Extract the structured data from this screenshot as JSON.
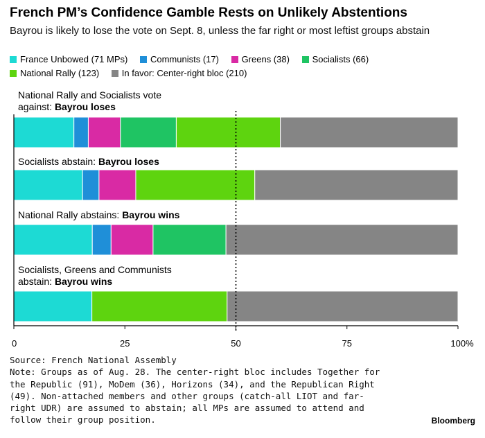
{
  "title": "French PM’s Confidence Gamble Rests on Unlikely Abstentions",
  "subtitle": "Bayrou is likely to lose the vote on Sept. 8, unless the far right or most leftist groups abstain",
  "colors": {
    "france_unbowed": "#1ddad4",
    "communists": "#1f8fd8",
    "greens": "#d92aa4",
    "socialists": "#1fc463",
    "national_rally": "#5ed40f",
    "center_right": "#858585"
  },
  "legend": [
    {
      "label": "France Unbowed (71 MPs)",
      "color": "#1ddad4"
    },
    {
      "label": "Communists (17)",
      "color": "#1f8fd8"
    },
    {
      "label": "Greens (38)",
      "color": "#d92aa4"
    },
    {
      "label": "Socialists (66)",
      "color": "#1fc463"
    },
    {
      "label": "National Rally (123)",
      "color": "#5ed40f"
    },
    {
      "label": "In favor: Center-right bloc (210)",
      "color": "#858585"
    }
  ],
  "chart_data": {
    "type": "bar",
    "orientation": "horizontal",
    "stacked": "percent",
    "xlim": [
      0,
      100
    ],
    "x_ticks": [
      "0",
      "25",
      "50",
      "75",
      "100%"
    ],
    "reference_line": 50,
    "panels": [
      {
        "label_plain": "National Rally and Socialists vote against: ",
        "label_bold": "Bayrou loses",
        "segments": [
          {
            "series": "France Unbowed (71 MPs)",
            "value": 71,
            "color": "#1ddad4"
          },
          {
            "series": "Communists (17)",
            "value": 17,
            "color": "#1f8fd8"
          },
          {
            "series": "Greens (38)",
            "value": 38,
            "color": "#d92aa4"
          },
          {
            "series": "Socialists (66)",
            "value": 66,
            "color": "#1fc463"
          },
          {
            "series": "National Rally (123)",
            "value": 123,
            "color": "#5ed40f"
          },
          {
            "series": "In favor: Center-right bloc (210)",
            "value": 210,
            "color": "#858585"
          }
        ]
      },
      {
        "label_plain": "Socialists abstain: ",
        "label_bold": "Bayrou loses",
        "segments": [
          {
            "series": "France Unbowed (71 MPs)",
            "value": 71,
            "color": "#1ddad4"
          },
          {
            "series": "Communists (17)",
            "value": 17,
            "color": "#1f8fd8"
          },
          {
            "series": "Greens (38)",
            "value": 38,
            "color": "#d92aa4"
          },
          {
            "series": "National Rally (123)",
            "value": 123,
            "color": "#5ed40f"
          },
          {
            "series": "In favor: Center-right bloc (210)",
            "value": 210,
            "color": "#858585"
          }
        ]
      },
      {
        "label_plain": "National Rally abstains: ",
        "label_bold": "Bayrou wins",
        "segments": [
          {
            "series": "France Unbowed (71 MPs)",
            "value": 71,
            "color": "#1ddad4"
          },
          {
            "series": "Communists (17)",
            "value": 17,
            "color": "#1f8fd8"
          },
          {
            "series": "Greens (38)",
            "value": 38,
            "color": "#d92aa4"
          },
          {
            "series": "Socialists (66)",
            "value": 66,
            "color": "#1fc463"
          },
          {
            "series": "In favor: Center-right bloc (210)",
            "value": 210,
            "color": "#858585"
          }
        ]
      },
      {
        "label_plain": "Socialists, Greens and Communists abstain: ",
        "label_bold": "Bayrou wins",
        "segments": [
          {
            "series": "France Unbowed (71 MPs)",
            "value": 71,
            "color": "#1ddad4"
          },
          {
            "series": "National Rally (123)",
            "value": 123,
            "color": "#5ed40f"
          },
          {
            "series": "In favor: Center-right bloc (210)",
            "value": 210,
            "color": "#858585"
          }
        ]
      }
    ]
  },
  "notes": {
    "source": "Source: French National Assembly",
    "note": "Note: Groups as of Aug. 28. The center-right bloc includes Together for the Republic (91), MoDem (36), Horizons (34), and the Republican Right (49). Non-attached members and other groups (catch-all LIOT and far-right UDR) are assumed to abstain; all MPs are assumed to attend and follow their group position."
  },
  "brand": "Bloomberg"
}
